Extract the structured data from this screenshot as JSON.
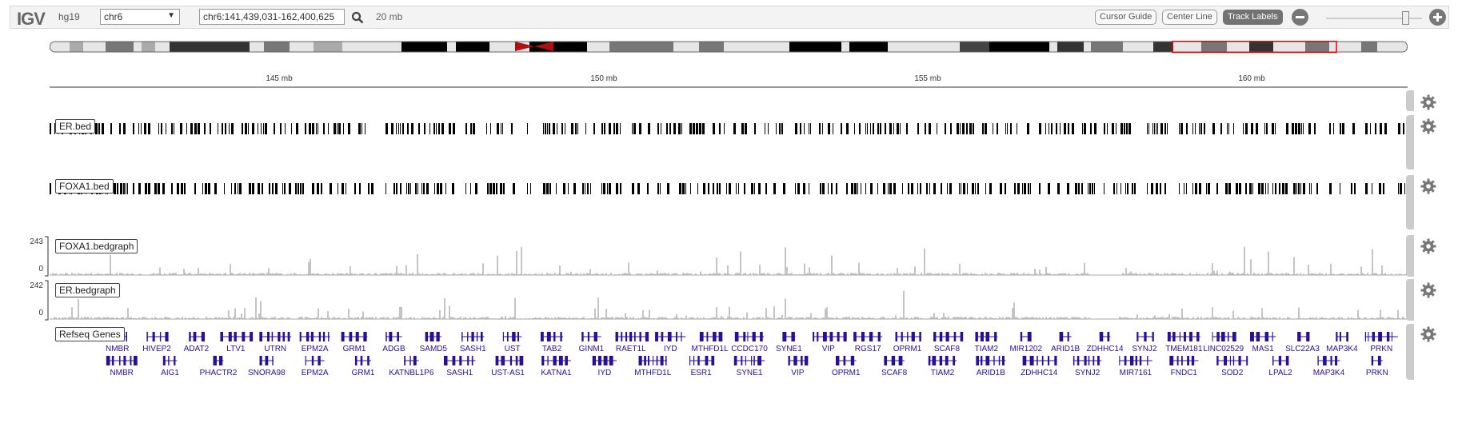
{
  "navbar": {
    "logo": "IGV",
    "genome": "hg19",
    "chromosome": "chr6",
    "locus": "chr6:141,439,031-162,400,625",
    "window_size": "20 mb",
    "cursor_guide": "Cursor Guide",
    "center_line": "Center Line",
    "track_labels": "Track Labels"
  },
  "ruler": {
    "ticks": [
      "145 mb",
      "150 mb",
      "155 mb",
      "160 mb"
    ]
  },
  "tracks": {
    "er_bed": "ER.bed",
    "foxa1_bed": "FOXA1.bed",
    "foxa1_bedgraph": "FOXA1.bedgraph",
    "foxa1_max": "243",
    "foxa1_min": "0",
    "er_bedgraph": "ER.bedgraph",
    "er_max": "242",
    "er_min": "0",
    "refseq": "Refseq Genes"
  },
  "genes_row1": [
    "NMBR",
    "HIVEP2",
    "ADAT2",
    "LTV1",
    "UTRN",
    "EPM2A",
    "GRM1",
    "ADGB",
    "SAMD5",
    "SASH1",
    "UST",
    "TAB2",
    "GINM1",
    "RAET1L",
    "IYD",
    "MTHFD1L",
    "CCDC170",
    "SYNE1",
    "VIP",
    "RGS17",
    "OPRM1",
    "SCAF8",
    "TIAM2",
    "MIR1202",
    "ARID1B",
    "ZDHHC14",
    "SYNJ2",
    "TMEM181",
    "LINC02529",
    "MAS1",
    "SLC22A3",
    "MAP3K4",
    "PRKN"
  ],
  "genes_row2": [
    "NMBR",
    "AIG1",
    "PHACTR2",
    "SNORA98",
    "EPM2A",
    "GRM1",
    "KATNBL1P6",
    "SASH1",
    "UST-AS1",
    "KATNA1",
    "IYD",
    "MTHFD1L",
    "ESR1",
    "SYNE1",
    "VIP",
    "OPRM1",
    "SCAF8",
    "TIAM2",
    "ARID1B",
    "ZDHHC14",
    "SYNJ2",
    "MIR7161",
    "FNDC1",
    "SOD2",
    "LPAL2",
    "MAP3K4",
    "PRKN"
  ],
  "colors": {
    "gene": "#2a0e96",
    "bar": "#000000",
    "signal": "#888888"
  }
}
